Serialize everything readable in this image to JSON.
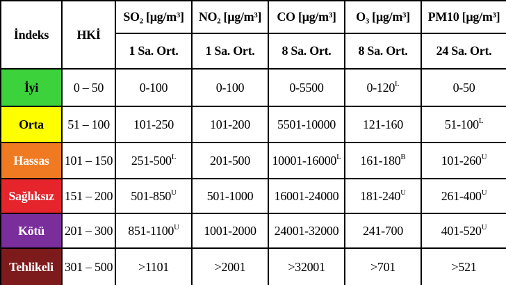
{
  "table": {
    "header": {
      "indeks": "İndeks",
      "hki": "HKİ",
      "pollutants": [
        {
          "name": "SO₂ [µg/m³]",
          "period": "1 Sa. Ort."
        },
        {
          "name": "NO₂ [µg/m³]",
          "period": "1 Sa. Ort."
        },
        {
          "name": "CO [µg/m³]",
          "period": "8 Sa. Ort."
        },
        {
          "name": "O₃ [µg/m³]",
          "period": "8 Sa. Ort."
        },
        {
          "name": "PM10 [µg/m³]",
          "period": "24 Sa. Ort."
        }
      ]
    },
    "rows": [
      {
        "label": "İyi",
        "color": "#3cd23c",
        "text_color": "#000000",
        "hki": "0 – 50",
        "cells": [
          {
            "text": "0-100"
          },
          {
            "text": "0-100"
          },
          {
            "text": "0-5500"
          },
          {
            "text": "0-120",
            "sup": "L"
          },
          {
            "text": "0-50"
          }
        ]
      },
      {
        "label": "Orta",
        "color": "#ffff00",
        "text_color": "#000000",
        "hki": "51 – 100",
        "cells": [
          {
            "text": "101-250"
          },
          {
            "text": "101-200"
          },
          {
            "text": "5501-10000"
          },
          {
            "text": "121-160"
          },
          {
            "text": "51-100",
            "sup": "L"
          }
        ]
      },
      {
        "label": "Hassas",
        "color": "#f07a22",
        "text_color": "#ffffff",
        "hki": "101 – 150",
        "cells": [
          {
            "text": "251-500",
            "sup": "L"
          },
          {
            "text": "201-500"
          },
          {
            "text": "10001-16000",
            "sup": "L"
          },
          {
            "text": "161-180",
            "sup": "B"
          },
          {
            "text": "101-260",
            "sup": "U"
          }
        ]
      },
      {
        "label": "Sağlıksız",
        "color": "#e6242b",
        "text_color": "#ffffff",
        "hki": "151 – 200",
        "cells": [
          {
            "text": "501-850",
            "sup": "U"
          },
          {
            "text": "501-1000"
          },
          {
            "text": "16001-24000"
          },
          {
            "text": "181-240",
            "sup": "U"
          },
          {
            "text": "261-400",
            "sup": "U"
          }
        ]
      },
      {
        "label": "Kötü",
        "color": "#7a2e9c",
        "text_color": "#ffffff",
        "hki": "201 – 300",
        "cells": [
          {
            "text": "851-1100",
            "sup": "U"
          },
          {
            "text": "1001-2000"
          },
          {
            "text": "24001-32000"
          },
          {
            "text": "241-700"
          },
          {
            "text": "401-520",
            "sup": "U"
          }
        ]
      },
      {
        "label": "Tehlikeli",
        "color": "#7c1a1c",
        "text_color": "#ffffff",
        "hki": "301 – 500",
        "cells": [
          {
            "text": ">1101"
          },
          {
            "text": ">2001"
          },
          {
            "text": ">32001"
          },
          {
            "text": ">701"
          },
          {
            "text": ">521"
          }
        ]
      }
    ]
  }
}
